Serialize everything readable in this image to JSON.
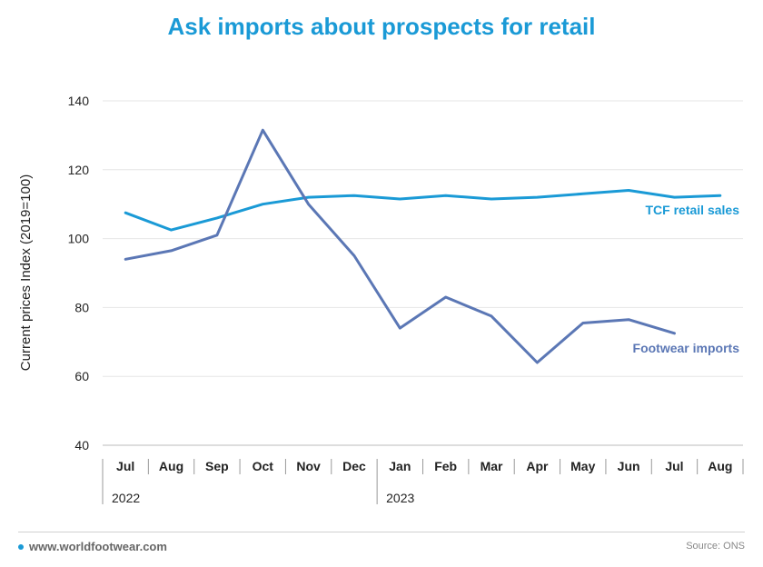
{
  "title": "Ask imports about prospects for retail",
  "footer": {
    "website": "www.worldfootwear.com",
    "source": "Source: ONS"
  },
  "colors": {
    "accent": "#1a9ad6",
    "footwear": "#5b77b5",
    "retail": "#1a9ad6"
  },
  "chart_data": {
    "type": "line",
    "title": "Ask imports about prospects for retail",
    "ylabel": "Current prices Index (2019=100)",
    "xlabel": "",
    "ylim": [
      40,
      140
    ],
    "yticks": [
      40,
      60,
      80,
      100,
      120,
      140
    ],
    "grid": true,
    "categories": [
      "Jul",
      "Aug",
      "Sep",
      "Oct",
      "Nov",
      "Dec",
      "Jan",
      "Feb",
      "Mar",
      "Apr",
      "May",
      "Jun",
      "Jul",
      "Aug"
    ],
    "year_groups": [
      {
        "label": "2022",
        "start": 0,
        "end": 5
      },
      {
        "label": "2023",
        "start": 6,
        "end": 13
      }
    ],
    "series": [
      {
        "name": "TCF retail sales",
        "color": "#1a9ad6",
        "values": [
          107.5,
          102.5,
          106,
          110,
          112,
          112.5,
          111.5,
          112.5,
          111.5,
          112,
          113,
          114,
          112,
          112.5
        ]
      },
      {
        "name": "Footwear imports",
        "color": "#5b77b5",
        "values": [
          94,
          96.5,
          101,
          131.5,
          110,
          95,
          74,
          83,
          77.5,
          64,
          75.5,
          76.5,
          72.5,
          null
        ]
      }
    ]
  }
}
